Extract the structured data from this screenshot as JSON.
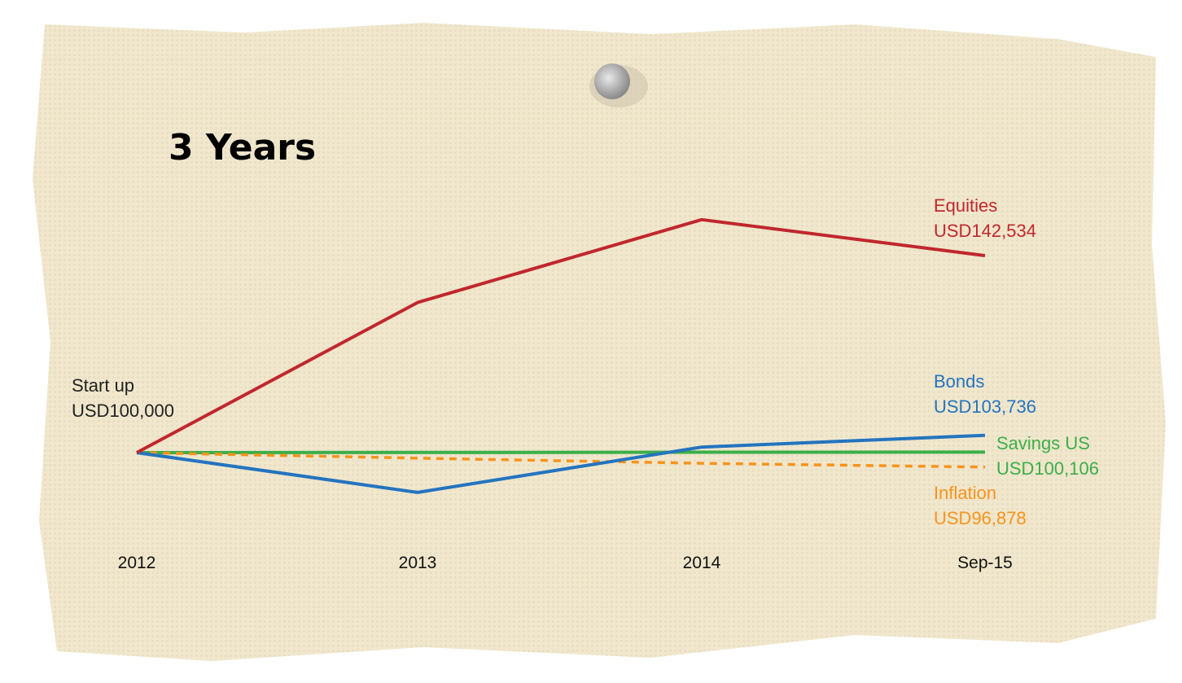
{
  "chart_data": {
    "type": "line",
    "title": "3 Years",
    "xlabel": "",
    "ylabel": "",
    "categories": [
      "2012",
      "2013",
      "2014",
      "Sep-15"
    ],
    "ylim": [
      88000,
      153000
    ],
    "grid": false,
    "start_label": {
      "line1": "Start up",
      "line2": "USD100,000"
    },
    "series": [
      {
        "name": "Equities",
        "end_label": "USD142,534",
        "color": "#c1272d",
        "dashed": false,
        "values": [
          100000,
          132400,
          150300,
          142534
        ]
      },
      {
        "name": "Bonds",
        "end_label": "USD103,736",
        "color": "#2474c0",
        "dashed": false,
        "values": [
          100000,
          91400,
          101200,
          103736
        ]
      },
      {
        "name": "Savings US",
        "end_label": "USD100,106",
        "color": "#3cae49",
        "dashed": false,
        "values": [
          100000,
          100040,
          100080,
          100106
        ]
      },
      {
        "name": "Inflation",
        "end_label": "USD96,878",
        "color": "#f7941d",
        "dashed": true,
        "values": [
          100000,
          98800,
          97700,
          96878
        ]
      }
    ]
  }
}
